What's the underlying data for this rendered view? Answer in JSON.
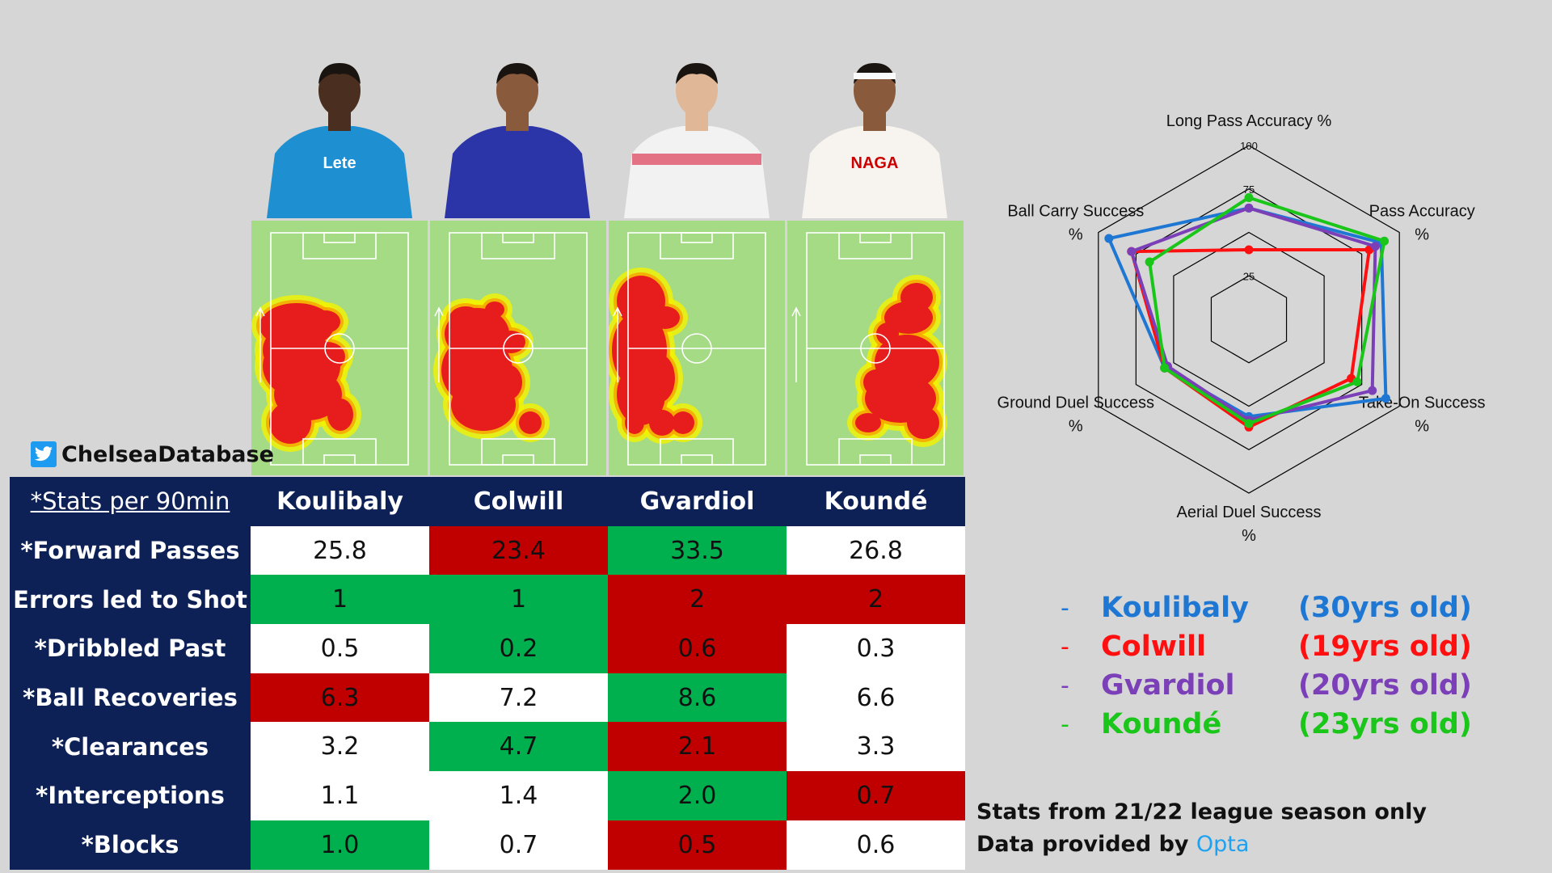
{
  "brand": {
    "handle": "ChelseaDatabase",
    "icon": "twitter-bird-icon"
  },
  "players": [
    {
      "name": "Koulibaly",
      "color": "#1f77d4",
      "age_label": "(30yrs old)",
      "kit": "#1e8fd0",
      "kit_text": "Lete",
      "skin": "#4a2e1f"
    },
    {
      "name": "Colwill",
      "color": "#ff1010",
      "age_label": "(19yrs old)",
      "kit": "#2b35a8",
      "kit_text": "",
      "skin": "#8a5a3c"
    },
    {
      "name": "Gvardiol",
      "color": "#7b3fb8",
      "age_label": "(20yrs old)",
      "kit": "#f2f2f2",
      "kit_text": "",
      "skin": "#e0b898"
    },
    {
      "name": "Koundé",
      "color": "#19c619",
      "age_label": "(23yrs old)",
      "kit": "#f7f3ef",
      "kit_text": "NAGA",
      "skin": "#8a5a3c"
    }
  ],
  "table": {
    "corner": "*Stats per 90min",
    "rows": [
      {
        "label": "*Forward Passes",
        "values": [
          "25.8",
          "23.4",
          "33.5",
          "26.8"
        ],
        "colors": [
          "w",
          "r",
          "g",
          "w"
        ]
      },
      {
        "label": "Errors led to Shot",
        "values": [
          "1",
          "1",
          "2",
          "2"
        ],
        "colors": [
          "g",
          "g",
          "r",
          "r"
        ]
      },
      {
        "label": "*Dribbled Past",
        "values": [
          "0.5",
          "0.2",
          "0.6",
          "0.3"
        ],
        "colors": [
          "w",
          "g",
          "r",
          "w"
        ]
      },
      {
        "label": "*Ball Recoveries",
        "values": [
          "6.3",
          "7.2",
          "8.6",
          "6.6"
        ],
        "colors": [
          "r",
          "w",
          "g",
          "w"
        ]
      },
      {
        "label": "*Clearances",
        "values": [
          "3.2",
          "4.7",
          "2.1",
          "3.3"
        ],
        "colors": [
          "w",
          "g",
          "r",
          "w"
        ]
      },
      {
        "label": "*Interceptions",
        "values": [
          "1.1",
          "1.4",
          "2.0",
          "0.7"
        ],
        "colors": [
          "w",
          "w",
          "g",
          "r"
        ]
      },
      {
        "label": "*Blocks",
        "values": [
          "1.0",
          "0.7",
          "0.5",
          "0.6"
        ],
        "colors": [
          "g",
          "w",
          "r",
          "w"
        ]
      }
    ]
  },
  "chart_data": {
    "type": "radar",
    "axes": [
      "Long Pass Accuracy %",
      "Pass Accuracy %",
      "Take-On Success %",
      "Aerial Duel Success %",
      "Ground Duel Success %",
      "Ball Carry Success %"
    ],
    "rlim": [
      0,
      100
    ],
    "ticks": [
      25,
      75,
      100
    ],
    "series": [
      {
        "name": "Koulibaly",
        "values": [
          64,
          88,
          91,
          56,
          56,
          93
        ]
      },
      {
        "name": "Colwill",
        "values": [
          40,
          80,
          68,
          62,
          56,
          78
        ]
      },
      {
        "name": "Gvardiol",
        "values": [
          64,
          84,
          82,
          58,
          54,
          78
        ]
      },
      {
        "name": "Koundé",
        "values": [
          70,
          90,
          72,
          60,
          56,
          66
        ]
      }
    ],
    "legend_position": "bottom-right"
  },
  "notes": {
    "season": "Stats from 21/22 league season only",
    "provided_prefix": "Data provided by",
    "provider": "Opta"
  }
}
